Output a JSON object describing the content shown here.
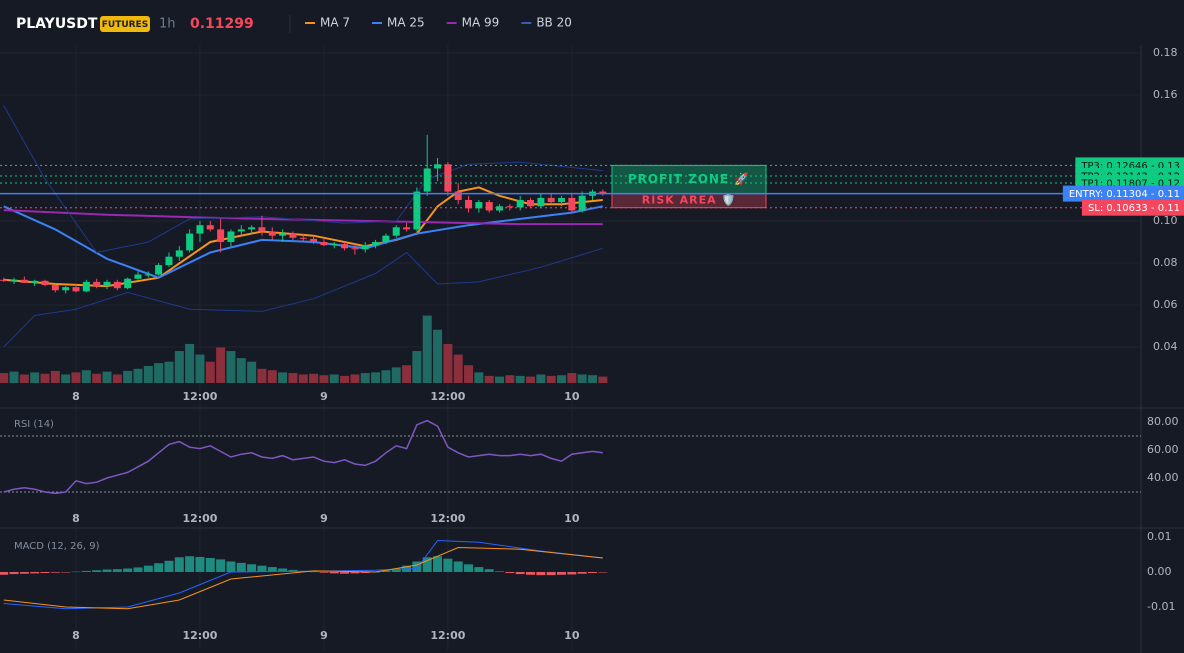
{
  "header": {
    "symbol": "PLAYUSDT",
    "badge": "FUTURES",
    "interval": "1h",
    "price": "0.11299"
  },
  "main": {
    "ylim": [
      0.0219,
      0.1838
    ],
    "yticks": [
      0.18,
      0.16,
      {
        "value": 0.1,
        "label": "0.10"
      },
      0.08,
      0.06,
      0.04
    ],
    "time_labels": [
      "8",
      "12:00",
      "9",
      "12:00",
      "10"
    ],
    "time_label_candle": [
      7,
      19,
      31,
      43,
      55
    ],
    "up_color": "#0ecb81",
    "down_color": "#f6465d",
    "candles": [
      [
        0.072,
        0.073,
        0.071,
        0.0715
      ],
      [
        0.0715,
        0.073,
        0.07,
        0.072
      ],
      [
        0.072,
        0.0735,
        0.0705,
        0.0705
      ],
      [
        0.0705,
        0.072,
        0.069,
        0.0715
      ],
      [
        0.0715,
        0.072,
        0.069,
        0.0695
      ],
      [
        0.0695,
        0.07,
        0.066,
        0.067
      ],
      [
        0.067,
        0.069,
        0.0655,
        0.0685
      ],
      [
        0.0685,
        0.07,
        0.066,
        0.0665
      ],
      [
        0.0665,
        0.072,
        0.066,
        0.071
      ],
      [
        0.071,
        0.0725,
        0.068,
        0.069
      ],
      [
        0.069,
        0.072,
        0.0675,
        0.071
      ],
      [
        0.071,
        0.072,
        0.067,
        0.068
      ],
      [
        0.068,
        0.073,
        0.0675,
        0.0725
      ],
      [
        0.0725,
        0.076,
        0.072,
        0.0745
      ],
      [
        0.0745,
        0.076,
        0.073,
        0.0745
      ],
      [
        0.0745,
        0.08,
        0.074,
        0.079
      ],
      [
        0.079,
        0.085,
        0.078,
        0.083
      ],
      [
        0.083,
        0.088,
        0.081,
        0.086
      ],
      [
        0.086,
        0.096,
        0.085,
        0.094
      ],
      [
        0.094,
        0.1,
        0.09,
        0.098
      ],
      [
        0.098,
        0.1,
        0.095,
        0.096
      ],
      [
        0.096,
        0.101,
        0.085,
        0.09
      ],
      [
        0.09,
        0.096,
        0.088,
        0.095
      ],
      [
        0.095,
        0.098,
        0.093,
        0.096
      ],
      [
        0.096,
        0.098,
        0.094,
        0.097
      ],
      [
        0.097,
        0.1025,
        0.093,
        0.095
      ],
      [
        0.095,
        0.097,
        0.091,
        0.093
      ],
      [
        0.093,
        0.096,
        0.09,
        0.094
      ],
      [
        0.094,
        0.095,
        0.091,
        0.092
      ],
      [
        0.092,
        0.094,
        0.09,
        0.0915
      ],
      [
        0.0915,
        0.093,
        0.089,
        0.09
      ],
      [
        0.09,
        0.092,
        0.088,
        0.0885
      ],
      [
        0.0885,
        0.09,
        0.087,
        0.089
      ],
      [
        0.089,
        0.09,
        0.086,
        0.087
      ],
      [
        0.087,
        0.089,
        0.084,
        0.0865
      ],
      [
        0.0865,
        0.09,
        0.085,
        0.0885
      ],
      [
        0.0885,
        0.091,
        0.087,
        0.09
      ],
      [
        0.09,
        0.094,
        0.089,
        0.093
      ],
      [
        0.093,
        0.098,
        0.092,
        0.097
      ],
      [
        0.097,
        0.099,
        0.095,
        0.096
      ],
      [
        0.096,
        0.116,
        0.095,
        0.114
      ],
      [
        0.114,
        0.141,
        0.112,
        0.125
      ],
      [
        0.125,
        0.13,
        0.119,
        0.127
      ],
      [
        0.127,
        0.128,
        0.112,
        0.114
      ],
      [
        0.114,
        0.118,
        0.108,
        0.11
      ],
      [
        0.11,
        0.112,
        0.104,
        0.106
      ],
      [
        0.106,
        0.11,
        0.104,
        0.109
      ],
      [
        0.109,
        0.11,
        0.104,
        0.105
      ],
      [
        0.105,
        0.108,
        0.104,
        0.107
      ],
      [
        0.107,
        0.108,
        0.105,
        0.1065
      ],
      [
        0.1065,
        0.112,
        0.105,
        0.11
      ],
      [
        0.11,
        0.111,
        0.106,
        0.107
      ],
      [
        0.107,
        0.113,
        0.106,
        0.111
      ],
      [
        0.111,
        0.113,
        0.108,
        0.109
      ],
      [
        0.109,
        0.112,
        0.107,
        0.111
      ],
      [
        0.111,
        0.113,
        0.104,
        0.105
      ],
      [
        0.105,
        0.114,
        0.104,
        0.112
      ],
      [
        0.112,
        0.115,
        0.11,
        0.114
      ],
      [
        0.114,
        0.115,
        0.112,
        0.113
      ]
    ],
    "volume_lim": [
      0,
      100
    ],
    "volumes": [
      14,
      16,
      12,
      15,
      13,
      17,
      12,
      15,
      18,
      13,
      16,
      12,
      17,
      20,
      24,
      28,
      30,
      45,
      55,
      40,
      30,
      50,
      45,
      35,
      30,
      20,
      18,
      15,
      14,
      12,
      13,
      11,
      12,
      10,
      12,
      14,
      15,
      18,
      22,
      25,
      45,
      95,
      75,
      55,
      40,
      25,
      15,
      10,
      9,
      11,
      10,
      9,
      12,
      10,
      11,
      14,
      12,
      11,
      9
    ],
    "lines": [
      {
        "name": "MA 7",
        "color": "#f7931a",
        "x": [
          0,
          5,
          10,
          15,
          20,
          25,
          30,
          35,
          38,
          40,
          42,
          44,
          46,
          48,
          51,
          54,
          58
        ],
        "values": [
          0.072,
          0.07,
          0.069,
          0.073,
          0.09,
          0.095,
          0.093,
          0.088,
          0.091,
          0.094,
          0.107,
          0.114,
          0.116,
          0.112,
          0.108,
          0.108,
          0.11
        ]
      },
      {
        "name": "MA 25",
        "color": "#3b82f6",
        "x": [
          0,
          5,
          10,
          15,
          20,
          25,
          30,
          35,
          40,
          45,
          50,
          55,
          58
        ],
        "values": [
          0.107,
          0.096,
          0.082,
          0.073,
          0.085,
          0.091,
          0.09,
          0.087,
          0.094,
          0.098,
          0.101,
          0.104,
          0.107
        ]
      },
      {
        "name": "MA 99",
        "color": "#9c27b0",
        "x": [
          0,
          10,
          20,
          30,
          40,
          50,
          58
        ],
        "values": [
          0.1052,
          0.103,
          0.1015,
          0.1005,
          0.0995,
          0.0985,
          0.0985
        ]
      },
      {
        "name": "BB 20",
        "color": "#1e3a8a",
        "x": [
          0,
          4,
          9,
          14,
          18,
          25,
          33,
          38,
          41,
          45,
          50,
          58
        ],
        "values": [
          0.155,
          0.12,
          0.085,
          0.09,
          0.101,
          0.102,
          0.099,
          0.1,
          0.12,
          0.127,
          0.128,
          0.124
        ],
        "lower": {
          "x": [
            0,
            3,
            7,
            12,
            18,
            25,
            30,
            36,
            39,
            42,
            46,
            52,
            58
          ],
          "values": [
            0.04,
            0.055,
            0.058,
            0.066,
            0.058,
            0.057,
            0.063,
            0.075,
            0.085,
            0.07,
            0.071,
            0.078,
            0.087
          ]
        }
      }
    ],
    "levels": [
      {
        "label": "TP3: 0.12646 - 0.13",
        "value": 0.12646,
        "color": "#0ecb81"
      },
      {
        "label": "TP2: 0.12143 - 0.12",
        "value": 0.12143,
        "color": "#0ecb81"
      },
      {
        "label": "TP1: 0.11807 - 0.12",
        "value": 0.11807,
        "color": "#0ecb81"
      },
      {
        "label": "ENTRY: 0.11304 - 0.11",
        "value": 0.11304,
        "color": "#3b82f6"
      },
      {
        "label": "SL: 0.10633 - 0.11",
        "value": 0.10633,
        "color": "#f6465d"
      }
    ],
    "profit_zone": "PROFIT ZONE 🚀",
    "risk_area": "RISK AREA 🛡️"
  },
  "rsi": {
    "title": "RSI (14)",
    "ylim": [
      6.4,
      88.6
    ],
    "yticks": [
      {
        "value": 80,
        "label": "80.00"
      },
      {
        "value": 60,
        "label": "60.00"
      },
      {
        "value": 40,
        "label": "40.00"
      }
    ],
    "bands": [
      70,
      30
    ],
    "color": "#7e57c2",
    "values": [
      30,
      32,
      33,
      32,
      30,
      29,
      30,
      38,
      36,
      37,
      40,
      42,
      44,
      48,
      52,
      58,
      64,
      66,
      62,
      61,
      63,
      59,
      55,
      57,
      58,
      55,
      54,
      56,
      53,
      54,
      55,
      52,
      51,
      53,
      50,
      49,
      52,
      58,
      63,
      61,
      78,
      81,
      77,
      62,
      58,
      55,
      56,
      57,
      56,
      56,
      57,
      56,
      57,
      54,
      52,
      57,
      58,
      59,
      58
    ]
  },
  "macd": {
    "title": "MACD (12, 26, 9)",
    "ylim": [
      -0.0223,
      0.012
    ],
    "yticks": [
      0.01,
      {
        "value": 0,
        "label": "0.00"
      },
      -0.01
    ],
    "histogram": [
      -0.0008,
      -0.0006,
      -0.0005,
      -0.0004,
      -0.0003,
      -0.0002,
      -0.0001,
      0.0001,
      0.0003,
      0.0005,
      0.0007,
      0.0008,
      0.001,
      0.0013,
      0.0018,
      0.0025,
      0.0032,
      0.0042,
      0.0045,
      0.0043,
      0.004,
      0.0036,
      0.003,
      0.0026,
      0.0022,
      0.0018,
      0.0014,
      0.001,
      0.0006,
      0.0003,
      0.0001,
      -0.0002,
      -0.0004,
      -0.0005,
      -0.0004,
      -0.0003,
      0,
      0.0004,
      0.001,
      0.0018,
      0.003,
      0.0042,
      0.0045,
      0.0038,
      0.003,
      0.0022,
      0.0014,
      0.0008,
      0.0002,
      -0.0003,
      -0.0006,
      -0.0008,
      -0.0009,
      -0.0009,
      -0.0008,
      -0.0007,
      -0.0005,
      -0.0003,
      -0.0001
    ],
    "lines": [
      {
        "color": "#2962ff",
        "x": [
          0,
          6,
          12,
          17,
          22,
          30,
          36,
          40,
          42,
          46,
          52,
          58
        ],
        "values": [
          -0.009,
          -0.0105,
          -0.01,
          -0.006,
          0,
          0.0002,
          0.0005,
          0.001,
          0.009,
          0.0085,
          0.006,
          0.004
        ]
      },
      {
        "color": "#f7931a",
        "x": [
          0,
          6,
          12,
          17,
          22,
          30,
          36,
          40,
          44,
          50,
          58
        ],
        "values": [
          -0.008,
          -0.01,
          -0.0105,
          -0.008,
          -0.002,
          0.0003,
          0,
          0.002,
          0.007,
          0.0065,
          0.004
        ]
      }
    ]
  }
}
